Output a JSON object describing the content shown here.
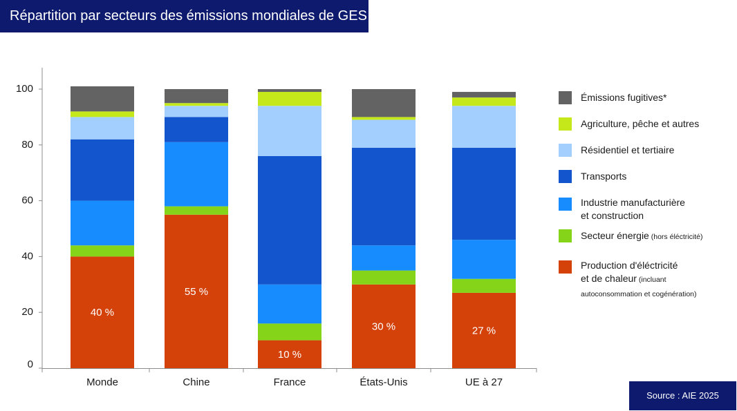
{
  "header": {
    "title": "Répartition par secteurs des émissions mondiales de GES"
  },
  "source": "Source : AIE 2025",
  "colors": {
    "header_bg": "#0d1a6e",
    "axis": "#8c8c8c"
  },
  "chart_data": {
    "type": "bar",
    "stacked": true,
    "title": "Répartition par secteurs des émissions mondiales de GES",
    "xlabel": "",
    "ylabel": "",
    "ylim": [
      0,
      100
    ],
    "yticks": [
      0,
      20,
      40,
      60,
      80,
      100
    ],
    "grid": false,
    "legend_position": "right",
    "categories": [
      "Monde",
      "Chine",
      "France",
      "États-Unis",
      "UE à 27"
    ],
    "series": [
      {
        "name": "Production d'éléctricité et de chaleur",
        "note": "(incluant autoconsommation et cogénération)",
        "color": "#d4420a",
        "values": [
          40,
          55,
          10,
          30,
          27
        ]
      },
      {
        "name": "Secteur énergie",
        "note": "(hors éléctricité)",
        "color": "#86d41a",
        "values": [
          4,
          3,
          6,
          5,
          5
        ]
      },
      {
        "name": "Industrie manufacturière et construction",
        "color": "#168cff",
        "values": [
          16,
          23,
          14,
          9,
          14
        ]
      },
      {
        "name": "Transports",
        "color": "#1255cc",
        "values": [
          22,
          9,
          46,
          35,
          33
        ]
      },
      {
        "name": "Résidentiel et tertiaire",
        "color": "#a3cfff",
        "values": [
          8,
          4,
          18,
          10,
          15
        ]
      },
      {
        "name": "Agriculture, pêche et autres",
        "color": "#c4e81a",
        "values": [
          2,
          1,
          5,
          1,
          3
        ]
      },
      {
        "name": "Émissions fugitives*",
        "color": "#636363",
        "values": [
          9,
          5,
          1,
          10,
          2
        ]
      }
    ],
    "data_labels": [
      "40 %",
      "55 %",
      "10 %",
      "30 %",
      "27 %"
    ]
  },
  "legend": {
    "items": [
      {
        "label": "Émissions fugitives*",
        "note": "",
        "color": "#636363"
      },
      {
        "label": "Agriculture, pêche et autres",
        "note": "",
        "color": "#c4e81a"
      },
      {
        "label": "Résidentiel et tertiaire",
        "note": "",
        "color": "#a3cfff"
      },
      {
        "label": "Transports",
        "note": "",
        "color": "#1255cc"
      },
      {
        "label": "Industrie manufacturière\net construction",
        "note": "",
        "color": "#168cff"
      },
      {
        "label": "Secteur énergie",
        "note": "(hors éléctricité)",
        "color": "#86d41a"
      },
      {
        "label": "Production d'éléctricité\net de chaleur",
        "note": "(incluant\nautoconsommation et cogénération)",
        "color": "#d4420a"
      }
    ]
  }
}
